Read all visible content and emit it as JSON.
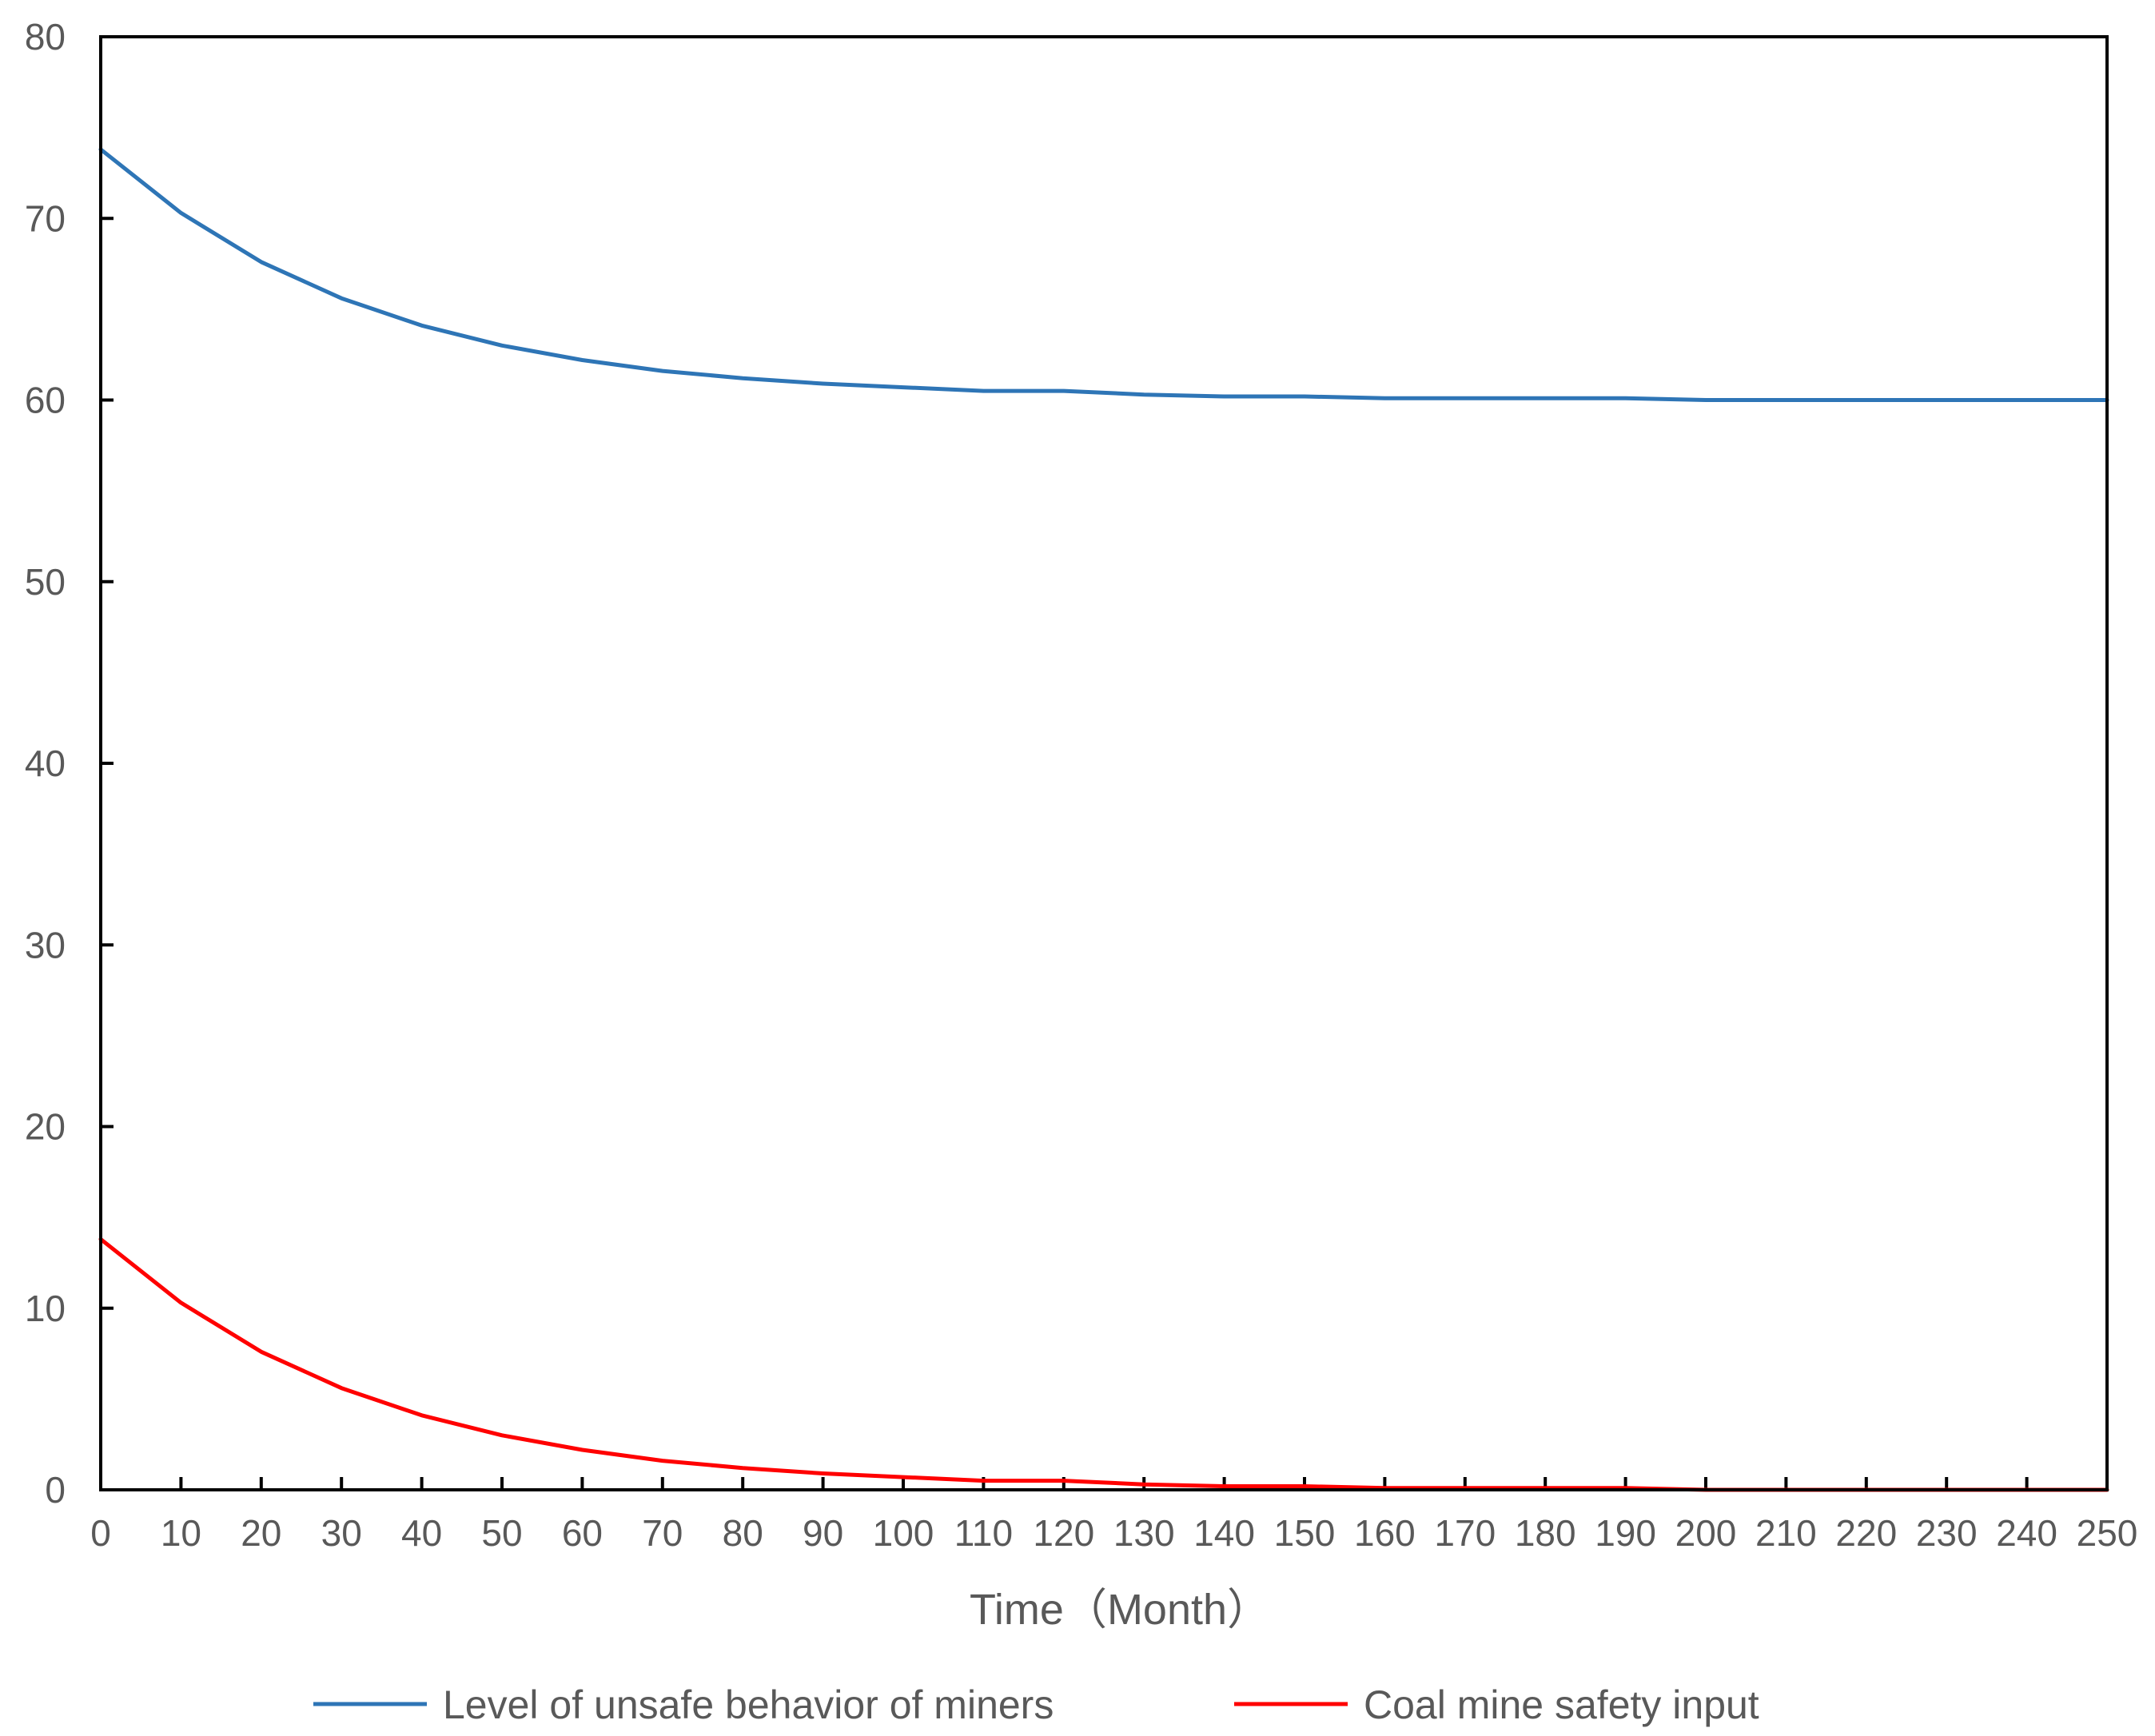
{
  "chart_data": {
    "type": "line",
    "title": "",
    "xlabel": "Time（Month）",
    "ylabel": "",
    "xlim": [
      0,
      250
    ],
    "ylim": [
      0,
      80
    ],
    "x_ticks": [
      0,
      10,
      20,
      30,
      40,
      50,
      60,
      70,
      80,
      90,
      100,
      110,
      120,
      130,
      140,
      150,
      160,
      170,
      180,
      190,
      200,
      210,
      220,
      230,
      240,
      250
    ],
    "y_ticks": [
      0,
      10,
      20,
      30,
      40,
      50,
      60,
      70,
      80
    ],
    "grid": false,
    "legend_position": "bottom",
    "x": [
      0,
      10,
      20,
      30,
      40,
      50,
      60,
      70,
      80,
      90,
      100,
      110,
      120,
      130,
      140,
      150,
      160,
      170,
      180,
      190,
      200,
      210,
      220,
      230,
      240,
      250
    ],
    "series": [
      {
        "name": "Level of unsafe behavior of miners",
        "color": "#2e75b6",
        "values": [
          73.8,
          70.3,
          67.6,
          65.6,
          64.1,
          63.0,
          62.2,
          61.6,
          61.2,
          60.9,
          60.7,
          60.5,
          60.5,
          60.3,
          60.2,
          60.2,
          60.1,
          60.1,
          60.1,
          60.1,
          60.0,
          60.0,
          60.0,
          60.0,
          60.0,
          60.0
        ]
      },
      {
        "name": "Coal mine safety input",
        "color": "#ff0000",
        "values": [
          13.8,
          10.3,
          7.6,
          5.6,
          4.1,
          3.0,
          2.2,
          1.6,
          1.2,
          0.9,
          0.7,
          0.5,
          0.5,
          0.3,
          0.2,
          0.2,
          0.1,
          0.1,
          0.1,
          0.1,
          0.0,
          0.0,
          0.0,
          0.0,
          0.0,
          0.0
        ]
      }
    ]
  }
}
